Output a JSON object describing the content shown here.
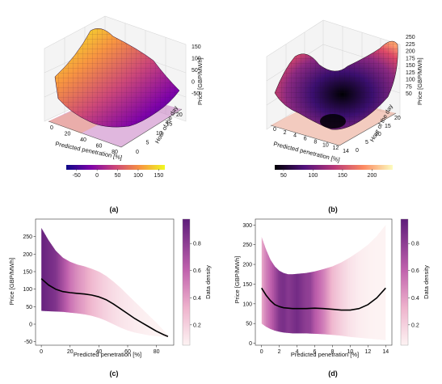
{
  "chart_data": [
    {
      "panel": "(a)",
      "type": "surface3d",
      "xlabel": "Predicted penetration [%]",
      "ylabel": "Hour of the day",
      "zlabel": "Price [GBP/MWh]",
      "xticks": [
        0,
        20,
        40,
        60,
        80
      ],
      "yticks": [
        0,
        5,
        10,
        15,
        20
      ],
      "zticks": [
        -50,
        0,
        50,
        100,
        150
      ],
      "colorbar": {
        "ticks": [
          -50,
          0,
          50,
          100,
          150
        ],
        "range": [
          -75,
          165
        ],
        "colormap": "plasma"
      }
    },
    {
      "panel": "(b)",
      "type": "surface3d",
      "xlabel": "Predicted penetration [%]",
      "ylabel": "Hour of the day",
      "zlabel": "Price [GBP/MWh]",
      "xticks": [
        0,
        2,
        4,
        6,
        8,
        10,
        12,
        14
      ],
      "yticks": [
        0,
        5,
        10,
        15,
        20
      ],
      "zticks": [
        50,
        75,
        100,
        125,
        150,
        175,
        200,
        225,
        250
      ],
      "colorbar": {
        "ticks": [
          50,
          100,
          150,
          200
        ],
        "range": [
          35,
          235
        ],
        "colormap": "magma"
      }
    },
    {
      "panel": "(c)",
      "type": "area",
      "xlabel": "Predicted penetration [%]",
      "ylabel": "Price [GBP/MWh]",
      "xlim": [
        -4,
        92
      ],
      "ylim": [
        -60,
        300
      ],
      "xticks": [
        0,
        20,
        40,
        60,
        80
      ],
      "yticks": [
        -50,
        0,
        50,
        100,
        150,
        200,
        250
      ],
      "series": [
        {
          "role": "mean",
          "x": [
            0,
            5,
            10,
            15,
            20,
            25,
            30,
            35,
            40,
            45,
            50,
            55,
            60,
            65,
            70,
            75,
            80,
            85,
            88
          ],
          "y": [
            130,
            112,
            100,
            93,
            90,
            88,
            86,
            83,
            78,
            70,
            58,
            44,
            30,
            16,
            4,
            -8,
            -20,
            -30,
            -35
          ]
        },
        {
          "role": "upper",
          "x": [
            0,
            5,
            10,
            15,
            20,
            25,
            30,
            35,
            40,
            45,
            50,
            55,
            60,
            65,
            70,
            75,
            80,
            85,
            88
          ],
          "y": [
            275,
            240,
            210,
            190,
            178,
            170,
            165,
            158,
            150,
            138,
            122,
            104,
            84,
            64,
            44,
            24,
            4,
            -18,
            -32
          ]
        },
        {
          "role": "lower",
          "x": [
            0,
            5,
            10,
            15,
            20,
            25,
            30,
            35,
            40,
            45,
            50,
            55,
            60,
            65,
            70,
            75,
            80,
            85,
            88
          ],
          "y": [
            38,
            37,
            36,
            35,
            33,
            31,
            28,
            24,
            18,
            10,
            0,
            -10,
            -18,
            -24,
            -28,
            -32,
            -34,
            -36,
            -38
          ]
        }
      ],
      "density": {
        "x": [
          0,
          5,
          10,
          15,
          20,
          25,
          30,
          35,
          40,
          45,
          50,
          55,
          60,
          65,
          70,
          75,
          80,
          85,
          88
        ],
        "values": [
          0.95,
          0.9,
          0.85,
          0.7,
          0.55,
          0.45,
          0.38,
          0.3,
          0.24,
          0.19,
          0.15,
          0.12,
          0.1,
          0.08,
          0.07,
          0.06,
          0.05,
          0.05,
          0.05
        ]
      },
      "colorbar": {
        "label": "Data density",
        "ticks": [
          0.2,
          0.4,
          0.6,
          0.8
        ],
        "range": [
          0.05,
          0.98
        ]
      }
    },
    {
      "panel": "(d)",
      "type": "area",
      "xlabel": "Predicted penetration [%]",
      "ylabel": "Price [GBP/MWh]",
      "xlim": [
        -0.7,
        14.7
      ],
      "ylim": [
        -5,
        315
      ],
      "xticks": [
        0,
        2,
        4,
        6,
        8,
        10,
        12,
        14
      ],
      "yticks": [
        0,
        50,
        100,
        150,
        200,
        250,
        300
      ],
      "series": [
        {
          "role": "mean",
          "x": [
            0,
            0.5,
            1,
            1.5,
            2,
            2.5,
            3,
            3.5,
            4,
            5,
            6,
            7,
            8,
            9,
            10,
            11,
            12,
            13,
            14
          ],
          "y": [
            140,
            122,
            108,
            98,
            93,
            90,
            89,
            88,
            88,
            88,
            89,
            88,
            86,
            84,
            84,
            88,
            98,
            115,
            140
          ]
        },
        {
          "role": "upper",
          "x": [
            0,
            0.5,
            1,
            1.5,
            2,
            2.5,
            3,
            3.5,
            4,
            5,
            6,
            7,
            8,
            9,
            10,
            11,
            12,
            13,
            14
          ],
          "y": [
            270,
            238,
            212,
            195,
            184,
            178,
            175,
            175,
            176,
            178,
            182,
            188,
            195,
            205,
            218,
            233,
            250,
            272,
            300
          ]
        },
        {
          "role": "lower",
          "x": [
            0,
            0.5,
            1,
            1.5,
            2,
            2.5,
            3,
            3.5,
            4,
            5,
            6,
            7,
            8,
            9,
            10,
            11,
            12,
            13,
            14
          ],
          "y": [
            50,
            42,
            36,
            32,
            29,
            27,
            26,
            25,
            25,
            25,
            24,
            23,
            21,
            19,
            16,
            14,
            12,
            10,
            8
          ]
        }
      ],
      "density": {
        "x": [
          0,
          0.5,
          1,
          1.5,
          2,
          2.5,
          3,
          3.5,
          4,
          4.5,
          5,
          5.5,
          6,
          7,
          8,
          9,
          10,
          11,
          12,
          13,
          14
        ],
        "values": [
          0.35,
          0.5,
          0.6,
          0.72,
          0.85,
          0.88,
          0.82,
          0.86,
          0.9,
          0.85,
          0.8,
          0.78,
          0.65,
          0.5,
          0.3,
          0.2,
          0.12,
          0.08,
          0.06,
          0.05,
          0.05
        ]
      },
      "colorbar": {
        "label": "Data density",
        "ticks": [
          0.2,
          0.4,
          0.6,
          0.8
        ],
        "range": [
          0.05,
          0.98
        ]
      }
    }
  ]
}
